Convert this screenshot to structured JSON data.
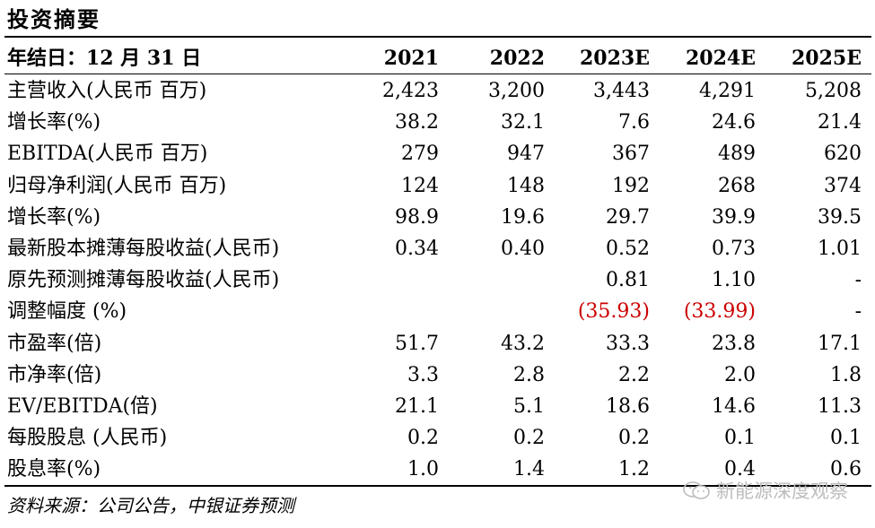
{
  "title": "投资摘要",
  "header": {
    "label": "年结日：12 月 31 日",
    "years": [
      "2021",
      "2022",
      "2023E",
      "2024E",
      "2025E"
    ]
  },
  "rows": [
    {
      "label": "主营收入(人民币  百万)",
      "values": [
        "2,423",
        "3,200",
        "3,443",
        "4,291",
        "5,208"
      ]
    },
    {
      "label": "增长率(%)",
      "values": [
        "38.2",
        "32.1",
        "7.6",
        "24.6",
        "21.4"
      ]
    },
    {
      "label": "EBITDA(人民币  百万)",
      "values": [
        "279",
        "947",
        "367",
        "489",
        "620"
      ]
    },
    {
      "label": "归母净利润(人民币  百万)",
      "values": [
        "124",
        "148",
        "192",
        "268",
        "374"
      ]
    },
    {
      "label": "增长率(%)",
      "values": [
        "98.9",
        "19.6",
        "29.7",
        "39.9",
        "39.5"
      ]
    },
    {
      "label": "最新股本摊薄每股收益(人民币)",
      "values": [
        "0.34",
        "0.40",
        "0.52",
        "0.73",
        "1.01"
      ]
    },
    {
      "label": "原先预测摊薄每股收益(人民币)",
      "values": [
        "",
        "",
        "0.81",
        "1.10",
        "-"
      ]
    },
    {
      "label": "调整幅度 (%)",
      "values": [
        "",
        "",
        "(35.93)",
        "(33.99)",
        "-"
      ]
    },
    {
      "label": "市盈率(倍)",
      "values": [
        "51.7",
        "43.2",
        "33.3",
        "23.8",
        "17.1"
      ]
    },
    {
      "label": "市净率(倍)",
      "values": [
        "3.3",
        "2.8",
        "2.2",
        "2.0",
        "1.8"
      ]
    },
    {
      "label": "EV/EBITDA(倍)",
      "values": [
        "21.1",
        "5.1",
        "18.6",
        "14.6",
        "11.3"
      ]
    },
    {
      "label": "每股股息 (人民币)",
      "values": [
        "0.2",
        "0.2",
        "0.2",
        "0.1",
        "0.1"
      ]
    },
    {
      "label": "股息率(%)",
      "values": [
        "1.0",
        "1.4",
        "1.2",
        "0.4",
        "0.6"
      ]
    }
  ],
  "negative_color": "#cc0000",
  "source": "资料来源：公司公告，中银证券预测",
  "watermark": "新能源深度观察"
}
